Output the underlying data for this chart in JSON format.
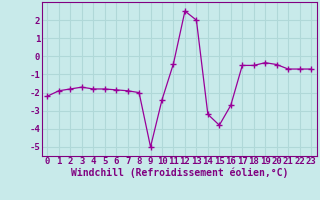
{
  "x": [
    0,
    1,
    2,
    3,
    4,
    5,
    6,
    7,
    8,
    9,
    10,
    11,
    12,
    13,
    14,
    15,
    16,
    17,
    18,
    19,
    20,
    21,
    22,
    23
  ],
  "y": [
    -2.2,
    -1.9,
    -1.8,
    -1.7,
    -1.8,
    -1.8,
    -1.85,
    -1.9,
    -2.0,
    -5.0,
    -2.4,
    -0.4,
    2.5,
    2.0,
    -3.2,
    -3.8,
    -2.7,
    -0.5,
    -0.5,
    -0.35,
    -0.45,
    -0.7,
    -0.7,
    -0.7
  ],
  "xlabel": "Windchill (Refroidissement éolien,°C)",
  "xlim": [
    -0.5,
    23.5
  ],
  "ylim": [
    -5.5,
    3.0
  ],
  "yticks": [
    -5,
    -4,
    -3,
    -2,
    -1,
    0,
    1,
    2
  ],
  "xticks": [
    0,
    1,
    2,
    3,
    4,
    5,
    6,
    7,
    8,
    9,
    10,
    11,
    12,
    13,
    14,
    15,
    16,
    17,
    18,
    19,
    20,
    21,
    22,
    23
  ],
  "line_color": "#990099",
  "marker": "+",
  "bg_color": "#c8eaea",
  "grid_color": "#b0d8d8",
  "spine_color": "#800080",
  "label_color": "#800080",
  "tick_color": "#800080",
  "xlabel_fontsize": 7.0,
  "tick_fontsize": 6.5
}
